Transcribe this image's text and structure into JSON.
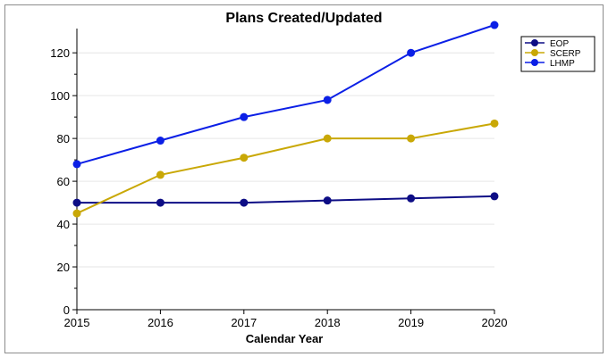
{
  "chart_data": {
    "type": "line",
    "title": "Plans Created/Updated",
    "xlabel": "Calendar Year",
    "ylabel": "",
    "x": [
      2015,
      2016,
      2017,
      2018,
      2019,
      2020
    ],
    "xlim": [
      2015,
      2020
    ],
    "ylim": [
      0,
      128
    ],
    "yticks": [
      0,
      20,
      40,
      60,
      80,
      100,
      120
    ],
    "grid": true,
    "legend_position": "top-right",
    "series": [
      {
        "name": "EOP",
        "color": "#0d0d85",
        "values": [
          50,
          50,
          50,
          51,
          52,
          53
        ]
      },
      {
        "name": "SCERP",
        "color": "#c9a806",
        "values": [
          45,
          63,
          71,
          80,
          80,
          87
        ]
      },
      {
        "name": "LHMP",
        "color": "#0b1fe6",
        "values": [
          68,
          79,
          90,
          98,
          120,
          133
        ]
      }
    ]
  }
}
